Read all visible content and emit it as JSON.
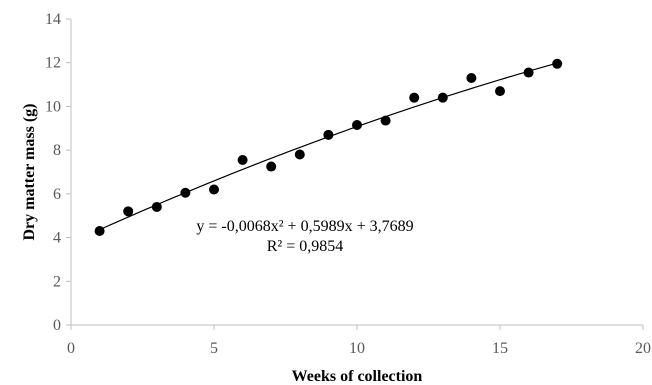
{
  "chart_data": {
    "type": "scatter",
    "xlabel": "Weeks of collection",
    "ylabel": "Dry matter mass (g)",
    "xlim": [
      0,
      20
    ],
    "ylim": [
      0,
      14
    ],
    "xticks": [
      0,
      5,
      10,
      15,
      20
    ],
    "yticks": [
      0,
      2,
      4,
      6,
      8,
      10,
      12,
      14
    ],
    "grid": false,
    "points": [
      {
        "x": 1,
        "y": 4.3
      },
      {
        "x": 2,
        "y": 5.2
      },
      {
        "x": 3,
        "y": 5.4
      },
      {
        "x": 4,
        "y": 6.05
      },
      {
        "x": 5,
        "y": 6.2
      },
      {
        "x": 6,
        "y": 7.55
      },
      {
        "x": 7,
        "y": 7.25
      },
      {
        "x": 8,
        "y": 7.8
      },
      {
        "x": 9,
        "y": 8.7
      },
      {
        "x": 10,
        "y": 9.15
      },
      {
        "x": 11,
        "y": 9.35
      },
      {
        "x": 12,
        "y": 10.4
      },
      {
        "x": 13,
        "y": 10.4
      },
      {
        "x": 14,
        "y": 11.3
      },
      {
        "x": 15,
        "y": 10.7
      },
      {
        "x": 16,
        "y": 11.55
      },
      {
        "x": 17,
        "y": 11.95
      }
    ],
    "trendline": {
      "type": "polynomial",
      "coefficients": {
        "a": -0.0068,
        "b": 0.5989,
        "c": 3.7689
      },
      "x_range": [
        1,
        17
      ]
    },
    "annotations": {
      "equation": "y = -0,0068x² + 0,5989x + 3,7689",
      "r_squared": "R² = 0,9854"
    },
    "colors": {
      "points": "#000000",
      "trendline": "#000000",
      "axis": "#bfbfbf",
      "tick_text": "#595959"
    }
  }
}
